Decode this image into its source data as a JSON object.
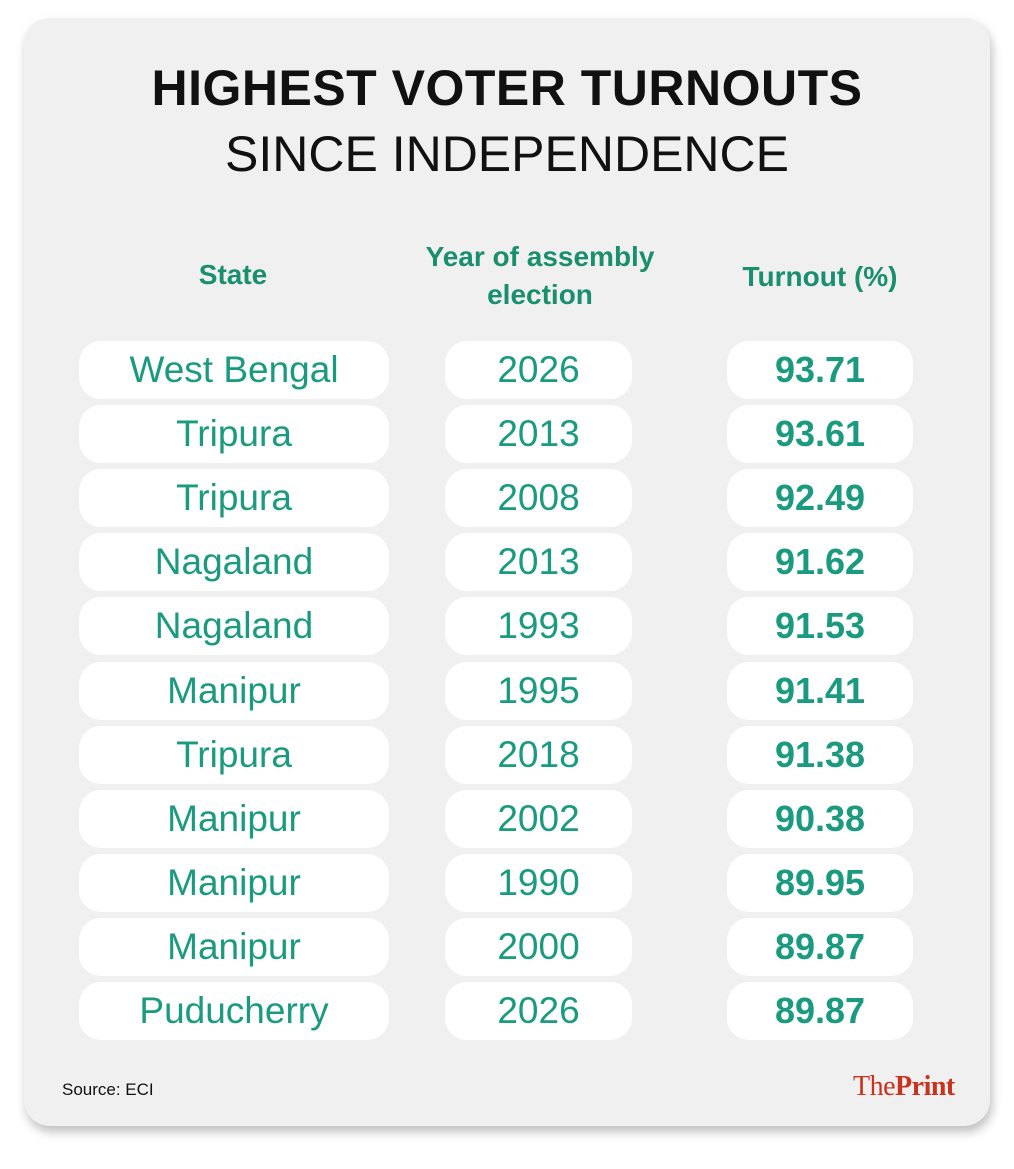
{
  "title": "HIGHEST VOTER TURNOUTS",
  "subtitle": "SINCE INDEPENDENCE",
  "chart_data": {
    "type": "table",
    "columns": [
      "State",
      "Year of assembly election",
      "Turnout (%)"
    ],
    "rows": [
      [
        "West Bengal",
        "2026",
        "93.71"
      ],
      [
        "Tripura",
        "2013",
        "93.61"
      ],
      [
        "Tripura",
        "2008",
        "92.49"
      ],
      [
        "Nagaland",
        "2013",
        "91.62"
      ],
      [
        "Nagaland",
        "1993",
        "91.53"
      ],
      [
        "Manipur",
        "1995",
        "91.41"
      ],
      [
        "Tripura",
        "2018",
        "91.38"
      ],
      [
        "Manipur",
        "2002",
        "90.38"
      ],
      [
        "Manipur",
        "1990",
        "89.95"
      ],
      [
        "Manipur",
        "2000",
        "89.87"
      ],
      [
        "Puducherry",
        "2026",
        "89.87"
      ]
    ]
  },
  "headers": {
    "state": "State",
    "year_line1": "Year of assembly",
    "year_line2": "election",
    "turnout": "Turnout (%)"
  },
  "source": "Source: ECI",
  "brand": {
    "part1": "The",
    "part2": "Print"
  },
  "colors": {
    "accent": "#1a8f6e",
    "brand": "#c8321e",
    "card": "#f0f0f0"
  }
}
